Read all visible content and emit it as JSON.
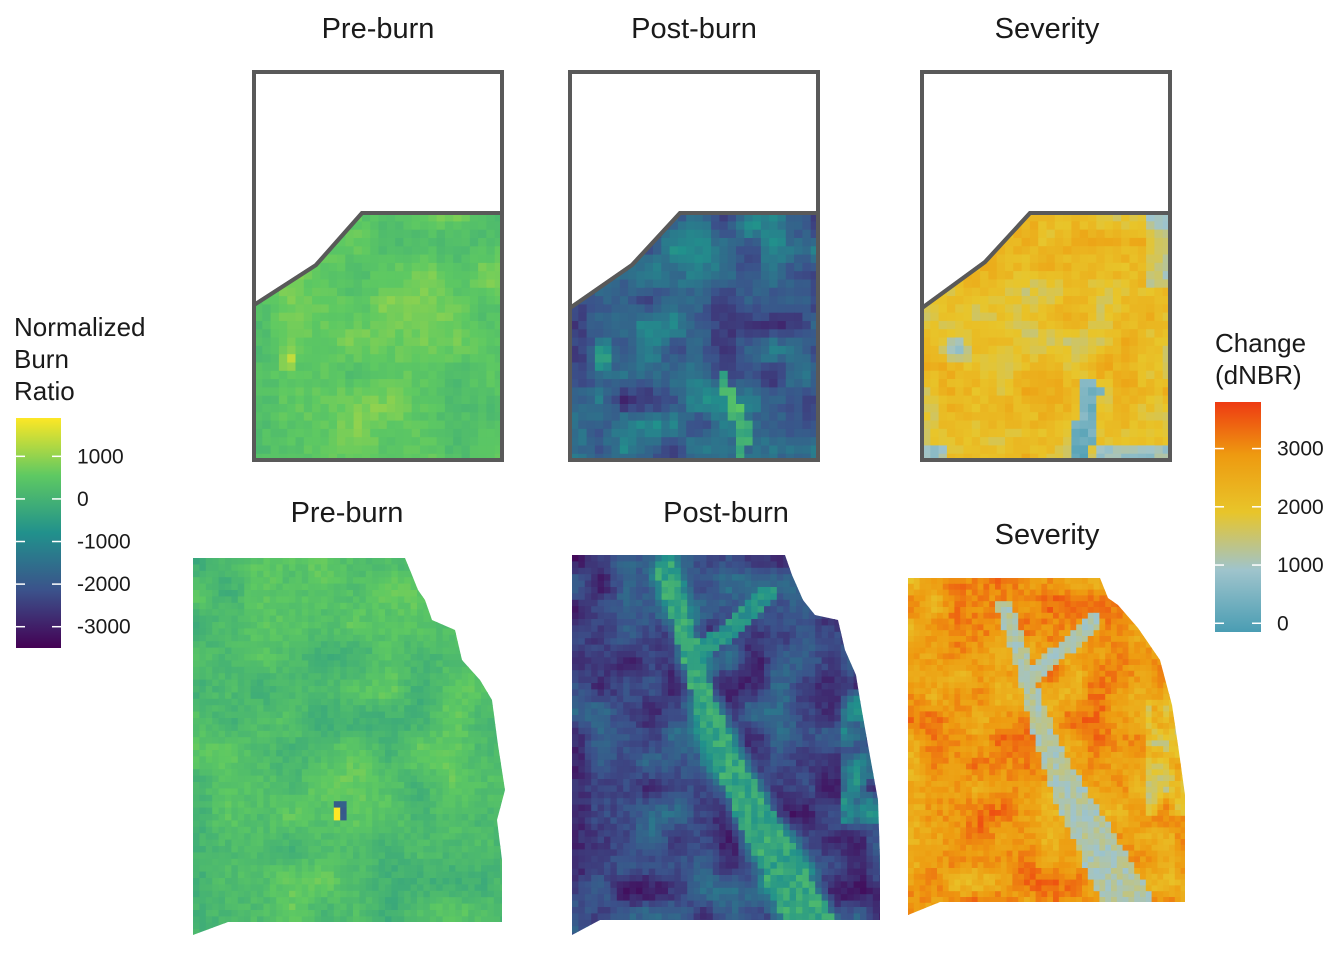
{
  "panels": [
    {
      "id": "top-preburn",
      "title": "Pre-burn",
      "kind": "nbr",
      "scene": "plots",
      "variant": "pre"
    },
    {
      "id": "top-postburn",
      "title": "Post-burn",
      "kind": "nbr",
      "scene": "plots",
      "variant": "post"
    },
    {
      "id": "top-severity",
      "title": "Severity",
      "kind": "dnbr",
      "scene": "plots",
      "variant": "sev"
    },
    {
      "id": "bottom-preburn",
      "title": "Pre-burn",
      "kind": "nbr",
      "scene": "watershed",
      "variant": "pre"
    },
    {
      "id": "bottom-postburn",
      "title": "Post-burn",
      "kind": "nbr",
      "scene": "watershed",
      "variant": "post"
    },
    {
      "id": "bottom-severity",
      "title": "Severity",
      "kind": "dnbr",
      "scene": "watershed",
      "variant": "sev"
    }
  ],
  "legend_nbr": {
    "title_lines": [
      "Normalized",
      "Burn",
      "Ratio"
    ],
    "ticks": [
      1000,
      0,
      -1000,
      -2000,
      -3000
    ],
    "range": [
      -3500,
      1900
    ],
    "colors": [
      "#440154",
      "#3b528b",
      "#21918c",
      "#5ec962",
      "#fde725"
    ]
  },
  "legend_dnbr": {
    "title_lines": [
      "Change",
      "(dNBR)"
    ],
    "ticks": [
      3000,
      2000,
      1000,
      0
    ],
    "range": [
      -150,
      3800
    ],
    "colors": [
      "#4a9db3",
      "#9fc4cc",
      "#e8c52a",
      "#ee9a10",
      "#ee3a12"
    ]
  },
  "colors": {
    "outline": "#595959",
    "background": "#ffffff"
  }
}
